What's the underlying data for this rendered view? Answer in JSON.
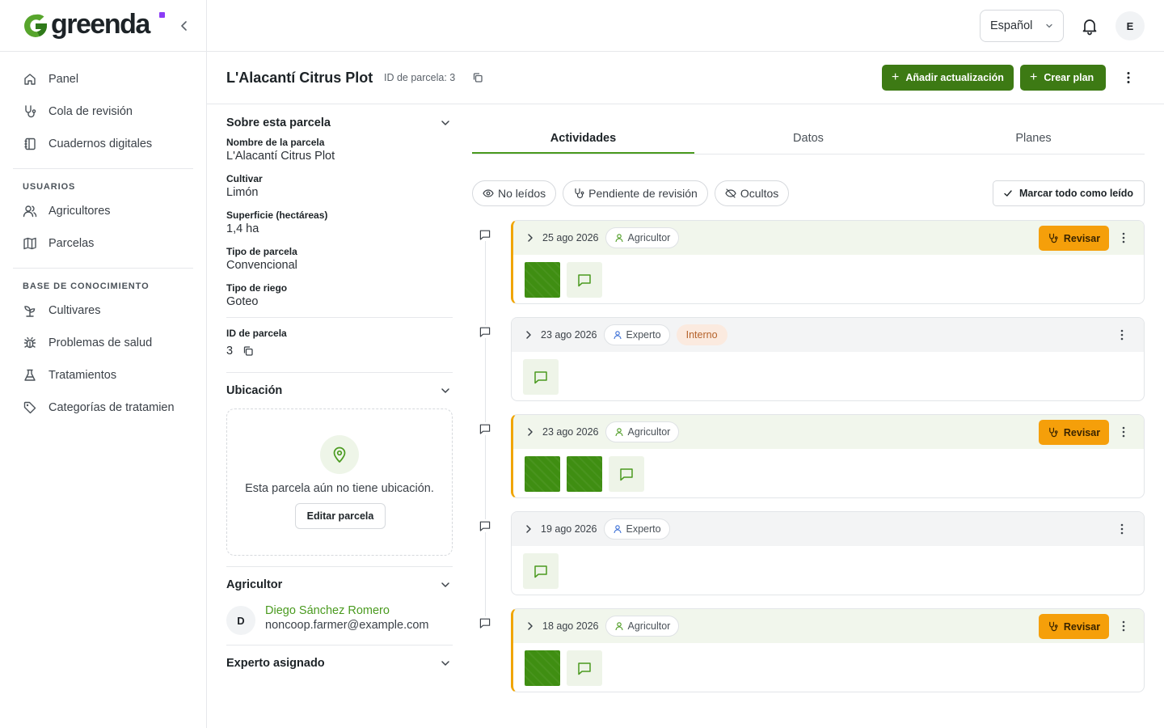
{
  "brand": {
    "name": "greenda"
  },
  "nav": {
    "items": [
      {
        "label": "Panel",
        "icon": "home-icon"
      },
      {
        "label": "Cola de revisión",
        "icon": "stethoscope-icon"
      },
      {
        "label": "Cuadernos digitales",
        "icon": "notebook-icon"
      }
    ],
    "sections": [
      {
        "title": "USUARIOS",
        "items": [
          {
            "label": "Agricultores",
            "icon": "users-icon"
          },
          {
            "label": "Parcelas",
            "icon": "map-icon"
          }
        ]
      },
      {
        "title": "BASE DE CONOCIMIENTO",
        "items": [
          {
            "label": "Cultivares",
            "icon": "sprout-icon"
          },
          {
            "label": "Problemas de salud",
            "icon": "bug-icon"
          },
          {
            "label": "Tratamientos",
            "icon": "flask-icon"
          },
          {
            "label": "Categorías de tratamien",
            "icon": "tag-icon"
          }
        ]
      }
    ]
  },
  "topbar": {
    "language": "Español",
    "user_initial": "E"
  },
  "page": {
    "title": "L'Alacantí Citrus Plot",
    "plot_id_label": "ID de parcela: 3",
    "add_update_label": "Añadir actualización",
    "create_plan_label": "Crear plan"
  },
  "about": {
    "title": "Sobre esta parcela",
    "fields": [
      {
        "label": "Nombre de la parcela",
        "value": "L'Alacantí Citrus Plot"
      },
      {
        "label": "Cultivar",
        "value": "Limón"
      },
      {
        "label": "Superficie (hectáreas)",
        "value": "1,4 ha"
      },
      {
        "label": "Tipo de parcela",
        "value": "Convencional"
      },
      {
        "label": "Tipo de riego",
        "value": "Goteo"
      }
    ],
    "id_label": "ID de parcela",
    "id_value": "3"
  },
  "location": {
    "title": "Ubicación",
    "empty_text": "Esta parcela aún no tiene ubicación.",
    "edit_label": "Editar parcela"
  },
  "farmer": {
    "title": "Agricultor",
    "initial": "D",
    "name": "Diego Sánchez Romero",
    "email": "noncoop.farmer@example.com"
  },
  "expert": {
    "title": "Experto asignado"
  },
  "tabs": [
    {
      "label": "Actividades",
      "active": true
    },
    {
      "label": "Datos",
      "active": false
    },
    {
      "label": "Planes",
      "active": false
    }
  ],
  "filters": {
    "unread": "No leídos",
    "pending": "Pendiente de revisión",
    "hidden": "Ocultos",
    "mark_all": "Marcar todo como leído"
  },
  "review_label": "Revisar",
  "activities": [
    {
      "date": "25 ago 2026",
      "role": "Agricultor",
      "unread": true,
      "review": true,
      "internal": "",
      "photos": 1
    },
    {
      "date": "23 ago 2026",
      "role": "Experto",
      "unread": false,
      "review": false,
      "internal": "Interno",
      "photos": 0
    },
    {
      "date": "23 ago 2026",
      "role": "Agricultor",
      "unread": true,
      "review": true,
      "internal": "",
      "photos": 2
    },
    {
      "date": "19 ago 2026",
      "role": "Experto",
      "unread": false,
      "review": false,
      "internal": "",
      "photos": 0
    },
    {
      "date": "18 ago 2026",
      "role": "Agricultor",
      "unread": true,
      "review": true,
      "internal": "",
      "photos": 1
    }
  ],
  "colors": {
    "primary": "#3d7a14",
    "accent": "#4a9a1f",
    "review": "#f59f0a",
    "unread_border": "#f0a500"
  }
}
